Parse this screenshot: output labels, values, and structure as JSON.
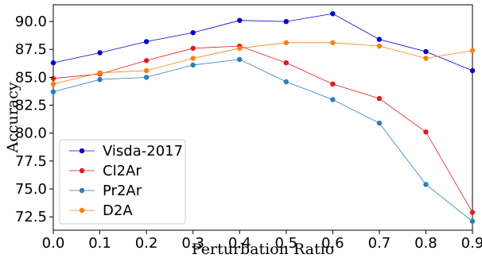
{
  "chart_data": {
    "type": "line",
    "xlabel": "Perturbation Ratio",
    "ylabel": "Accuracy",
    "x": [
      0.0,
      0.1,
      0.2,
      0.3,
      0.4,
      0.5,
      0.6,
      0.7,
      0.8,
      0.9
    ],
    "x_tick_labels": [
      "0.0",
      "0.1",
      "0.2",
      "0.3",
      "0.4",
      "0.5",
      "0.6",
      "0.7",
      "0.8",
      "0.9"
    ],
    "y_ticks": [
      72.5,
      75.0,
      77.5,
      80.0,
      82.5,
      85.0,
      87.5,
      90.0
    ],
    "y_tick_labels": [
      "72.5",
      "75.0",
      "77.5",
      "80.0",
      "82.5",
      "85.0",
      "87.5",
      "90.0"
    ],
    "xlim": [
      0.0,
      0.9
    ],
    "ylim": [
      71.3,
      91.5
    ],
    "grid": false,
    "legend_position": "bottom-left",
    "series": [
      {
        "name": "Visda-2017",
        "color": "#0000cc",
        "values": [
          86.3,
          87.2,
          88.2,
          89.0,
          90.1,
          90.0,
          90.7,
          88.4,
          87.3,
          85.6
        ]
      },
      {
        "name": "Cl2Ar",
        "color": "#e31a1c",
        "values": [
          84.9,
          85.3,
          86.5,
          87.6,
          87.8,
          86.3,
          84.4,
          83.1,
          80.1,
          72.9
        ]
      },
      {
        "name": "Pr2Ar",
        "color": "#2a7fb8",
        "values": [
          83.7,
          84.8,
          85.0,
          86.1,
          86.6,
          84.6,
          83.0,
          80.9,
          75.4,
          72.1
        ]
      },
      {
        "name": "D2A",
        "color": "#ff7f0e",
        "values": [
          84.4,
          85.4,
          85.6,
          86.7,
          87.6,
          88.1,
          88.1,
          87.8,
          86.7,
          87.4
        ]
      }
    ]
  }
}
